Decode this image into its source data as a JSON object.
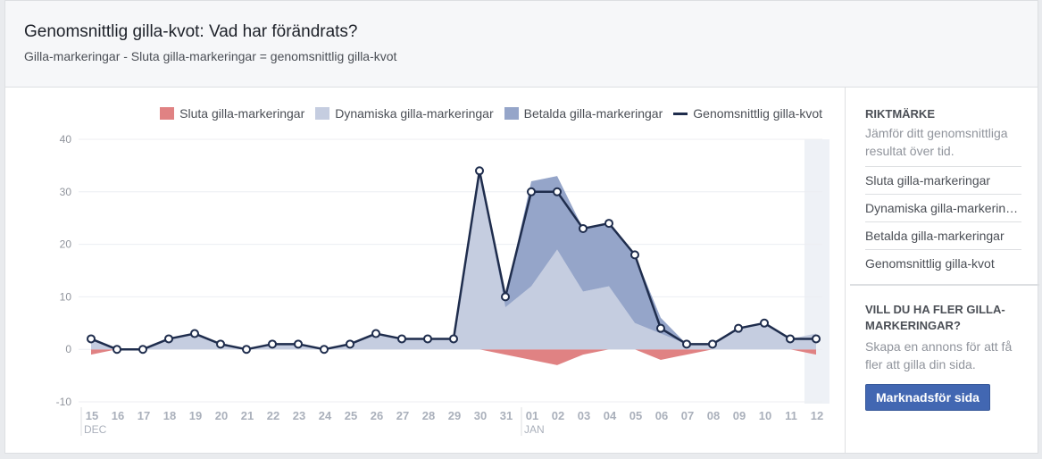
{
  "header": {
    "title": "Genomsnittlig gilla-kvot: Vad har förändrats?",
    "subtitle": "Gilla-markeringar - Sluta gilla-markeringar = genomsnittlig gilla-kvot"
  },
  "legend": [
    {
      "label": "Sluta gilla-markeringar",
      "color": "#e08283",
      "kind": "swatch"
    },
    {
      "label": "Dynamiska gilla-markeringar",
      "color": "#c5cde0",
      "kind": "swatch"
    },
    {
      "label": "Betalda gilla-markeringar",
      "color": "#95a5c9",
      "kind": "swatch"
    },
    {
      "label": "Genomsnittlig gilla-kvot",
      "color": "#1f2d4d",
      "kind": "line"
    }
  ],
  "chart_data": {
    "type": "area",
    "ylim": [
      -10,
      40
    ],
    "yticks": [
      40,
      30,
      20,
      10,
      0,
      -10
    ],
    "x": [
      "15",
      "16",
      "17",
      "18",
      "19",
      "20",
      "21",
      "22",
      "23",
      "24",
      "25",
      "26",
      "27",
      "28",
      "29",
      "30",
      "31",
      "01",
      "02",
      "03",
      "04",
      "05",
      "06",
      "07",
      "08",
      "09",
      "10",
      "11",
      "12"
    ],
    "month_labels": [
      {
        "at": "15",
        "label": "DEC"
      },
      {
        "at": "01",
        "label": "JAN"
      }
    ],
    "series": [
      {
        "name": "Sluta gilla-markeringar",
        "color": "#e08283",
        "values": [
          -1,
          0,
          0,
          0,
          0,
          0,
          0,
          0,
          0,
          0,
          0,
          0,
          0,
          0,
          0,
          0,
          -1,
          -2,
          -3,
          -1,
          0,
          0,
          -2,
          -1,
          0,
          0,
          0,
          0,
          -1
        ]
      },
      {
        "name": "Dynamiska gilla-markeringar",
        "color": "#c5cde0",
        "values": [
          2,
          0,
          0,
          2,
          3,
          1,
          0,
          1,
          1,
          0,
          1,
          3,
          2,
          2,
          2,
          34,
          8,
          12,
          19,
          11,
          12,
          5,
          3,
          1,
          1,
          4,
          5,
          2,
          3
        ]
      },
      {
        "name": "Betalda gilla-markeringar",
        "color": "#95a5c9",
        "values": [
          0,
          0,
          0,
          0,
          0,
          0,
          0,
          0,
          0,
          0,
          0,
          0,
          0,
          0,
          0,
          0,
          2,
          20,
          14,
          12,
          12,
          13,
          3,
          0,
          0,
          0,
          0,
          0,
          0
        ]
      },
      {
        "name": "Genomsnittlig gilla-kvot",
        "color": "#1f2d4d",
        "values": [
          2,
          0,
          0,
          2,
          3,
          1,
          0,
          1,
          1,
          0,
          1,
          3,
          2,
          2,
          2,
          34,
          10,
          30,
          30,
          23,
          24,
          18,
          4,
          1,
          1,
          4,
          5,
          2,
          2
        ]
      }
    ],
    "grid": true,
    "legend_position": "top-right"
  },
  "sidebar": {
    "benchmark_heading": "RIKTMÄRKE",
    "benchmark_desc": "Jämför ditt genomsnittliga resultat över tid.",
    "items": [
      "Sluta gilla-markeringar",
      "Dynamiska gilla-markeringar",
      "Betalda gilla-markeringar",
      "Genomsnittlig gilla-kvot"
    ],
    "promo_heading": "VILL DU HA FLER GILLA-MARKERINGAR?",
    "promo_desc": "Skapa en annons för att få fler att gilla din sida.",
    "promo_button": "Marknadsför sida"
  }
}
